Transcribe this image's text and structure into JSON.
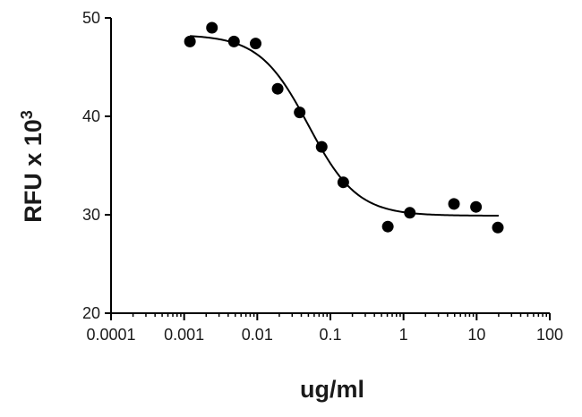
{
  "chart_data": {
    "type": "scatter",
    "xlabel": "ug/ml",
    "ylabel": "RFU x 10",
    "ylabel_superscript": "3",
    "x_scale": "log",
    "xlim": [
      0.0001,
      100
    ],
    "ylim": [
      20,
      50
    ],
    "x_ticks": [
      0.0001,
      0.001,
      0.01,
      0.1,
      1,
      10,
      100
    ],
    "x_tick_labels": [
      "0.0001",
      "0.001",
      "0.01",
      "0.1",
      "1",
      "10",
      "100"
    ],
    "y_ticks": [
      20,
      30,
      40,
      50
    ],
    "y_tick_labels": [
      "20",
      "30",
      "40",
      "50"
    ],
    "grid": false,
    "series": [
      {
        "points": [
          {
            "x": 0.0012,
            "y": 47.6
          },
          {
            "x": 0.0024,
            "y": 49.0
          },
          {
            "x": 0.0048,
            "y": 47.6
          },
          {
            "x": 0.0095,
            "y": 47.4
          },
          {
            "x": 0.019,
            "y": 42.8
          },
          {
            "x": 0.038,
            "y": 40.4
          },
          {
            "x": 0.076,
            "y": 36.9
          },
          {
            "x": 0.15,
            "y": 33.3
          },
          {
            "x": 0.61,
            "y": 28.8
          },
          {
            "x": 1.22,
            "y": 30.2
          },
          {
            "x": 4.9,
            "y": 31.1
          },
          {
            "x": 9.8,
            "y": 30.8
          },
          {
            "x": 19.5,
            "y": 28.7
          }
        ]
      }
    ],
    "fit": {
      "model": "4PL",
      "top": 48.3,
      "bottom": 29.9,
      "ec50": 0.05,
      "hill": 1.3,
      "x_range": [
        0.0012,
        20
      ]
    }
  }
}
